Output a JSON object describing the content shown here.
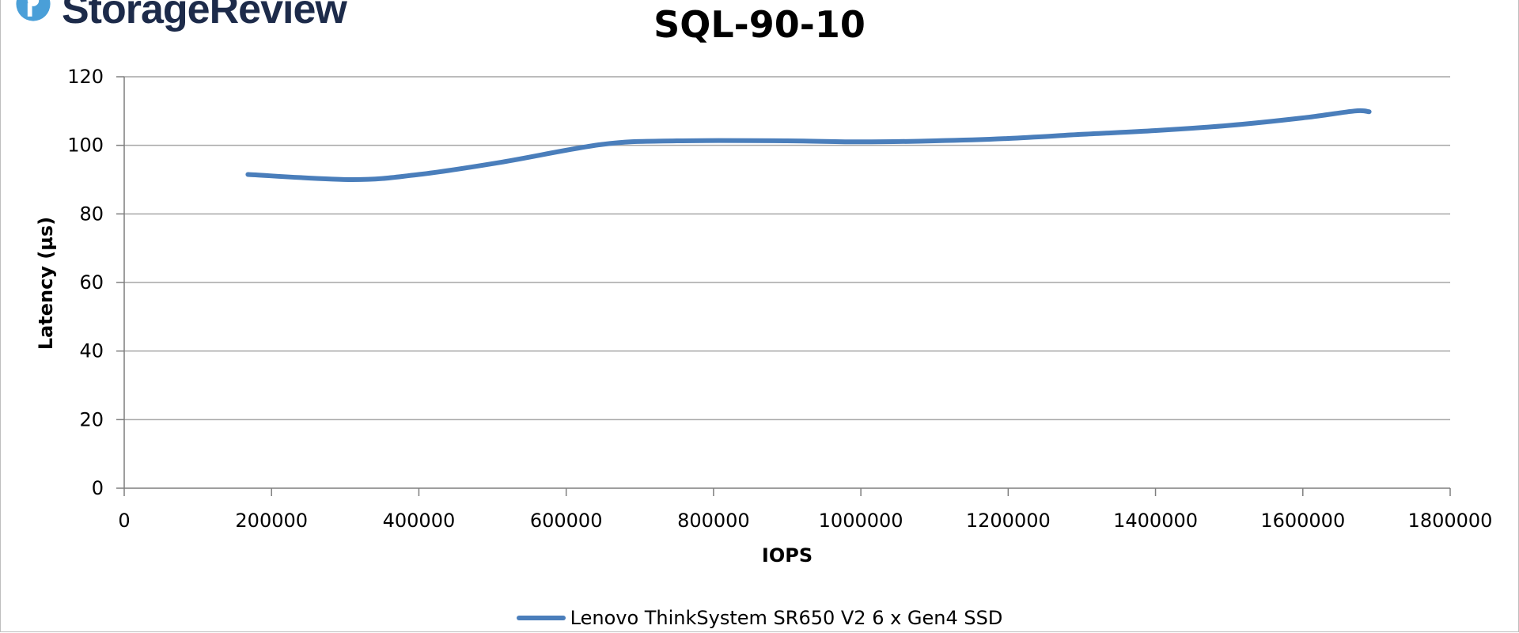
{
  "brand": {
    "name": "StorageReview",
    "icon": "storagereview-logo-icon",
    "color": "#1d2b4a",
    "accent": "#4a9fd8"
  },
  "chart_data": {
    "type": "line",
    "title": "SQL-90-10",
    "xlabel": "IOPS",
    "ylabel": "Latency (µs)",
    "xlim": [
      0,
      1800000
    ],
    "ylim": [
      0,
      120
    ],
    "x_ticks": [
      "0",
      "200000",
      "400000",
      "600000",
      "800000",
      "1000000",
      "1200000",
      "1400000",
      "1600000",
      "1800000"
    ],
    "y_ticks": [
      "0",
      "20",
      "40",
      "60",
      "80",
      "100",
      "120"
    ],
    "grid": "horizontal",
    "legend_position": "bottom",
    "series": [
      {
        "name": "Lenovo ThinkSystem SR650 V2 6 x Gen4 SSD",
        "color": "#4a7ebb",
        "x": [
          168000,
          310000,
          400000,
          510000,
          650000,
          750000,
          900000,
          1000000,
          1100000,
          1200000,
          1300000,
          1400000,
          1500000,
          1600000,
          1670000,
          1690000
        ],
        "y": [
          91.5,
          90.0,
          91.5,
          95.0,
          100.3,
          101.3,
          101.3,
          101.0,
          101.3,
          102.0,
          103.2,
          104.3,
          105.8,
          108.0,
          110.0,
          109.8
        ]
      }
    ]
  }
}
